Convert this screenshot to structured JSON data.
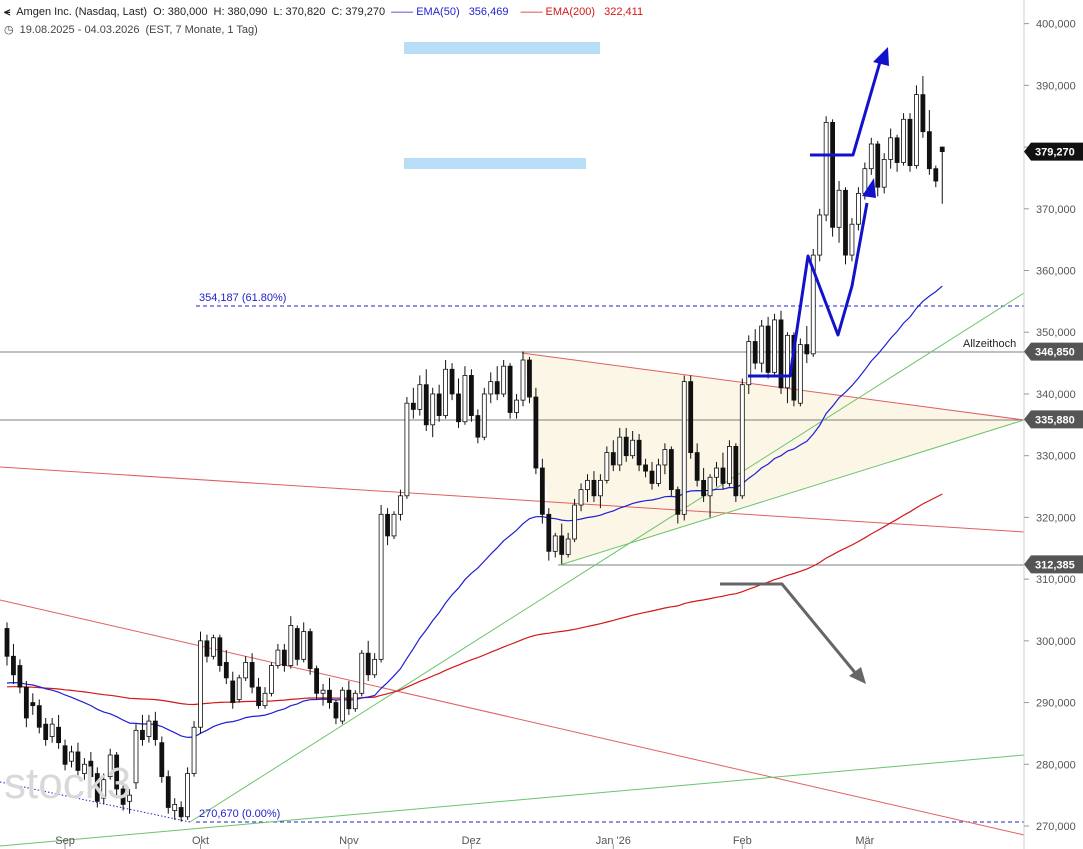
{
  "header": {
    "title": "Amgen Inc. (Nasdaq, Last)",
    "open": "O: 380,000",
    "high": "H: 380,090",
    "low": "L: 370,820",
    "close": "C: 379,270",
    "ema50_label": "EMA(50)",
    "ema50_value": "356,469",
    "ema200_label": "EMA(200)",
    "ema200_value": "322,411",
    "period": "19.08.2025 - 04.03.2026",
    "period_note": "(EST, 7 Monate, 1 Tag)"
  },
  "watermark": "stock3",
  "colors": {
    "ema50": "#1f1fd4",
    "ema200": "#d21818",
    "up": "#ffffff",
    "down": "#111111",
    "fib": "#2222cc",
    "zone": "#b7ddf7",
    "triangle": "#fbf6e6",
    "trend_green": "#6cc46c",
    "trend_red": "#e06060",
    "arrow_blue": "#1212cc",
    "arrow_gray": "#666666"
  },
  "annotations": {
    "allzeithoch": "Allzeithoch",
    "fib_high": "354,187 (61.80%)",
    "fib_low": "270,670 (0.00%)"
  },
  "chart_data": {
    "type": "candlestick",
    "title": "Amgen Inc. (Nasdaq, Last)",
    "ylim": [
      268,
      403
    ],
    "y_ticks": [
      "270,000",
      "280,000",
      "290,000",
      "300,000",
      "310,000",
      "320,000",
      "330,000",
      "340,000",
      "350,000",
      "360,000",
      "370,000",
      "380,000",
      "390,000",
      "400,000"
    ],
    "x_ticks": [
      {
        "label": "Sep",
        "index": 9
      },
      {
        "label": "Okt",
        "index": 30
      },
      {
        "label": "Nov",
        "index": 53
      },
      {
        "label": "Dez",
        "index": 72
      },
      {
        "label": "Jan '26",
        "index": 94
      },
      {
        "label": "Feb",
        "index": 114
      },
      {
        "label": "Mär",
        "index": 133
      }
    ],
    "price_levels": [
      {
        "label": "379,270",
        "value": 379.27,
        "type": "last"
      },
      {
        "label": "346,850",
        "value": 346.85,
        "type": "line"
      },
      {
        "label": "335,880",
        "value": 335.88,
        "type": "line"
      },
      {
        "label": "312,385",
        "value": 312.385,
        "type": "line"
      }
    ],
    "candles": [
      [
        302.0,
        303.0,
        296.0,
        297.5
      ],
      [
        297.5,
        299.5,
        293.0,
        294.5
      ],
      [
        296.0,
        297.0,
        291.5,
        292.5
      ],
      [
        292.5,
        293.5,
        286.0,
        287.5
      ],
      [
        290.0,
        291.5,
        288.0,
        289.5
      ],
      [
        289.5,
        290.5,
        285.0,
        286.0
      ],
      [
        286.5,
        287.5,
        283.0,
        284.0
      ],
      [
        284.5,
        287.5,
        283.5,
        286.5
      ],
      [
        286.0,
        288.0,
        282.5,
        283.5
      ],
      [
        283.0,
        284.0,
        279.0,
        280.0
      ],
      [
        280.5,
        283.0,
        279.5,
        282.0
      ],
      [
        282.0,
        283.5,
        278.0,
        279.0
      ],
      [
        278.5,
        281.0,
        277.5,
        280.0
      ],
      [
        280.5,
        282.0,
        277.0,
        278.0
      ],
      [
        278.5,
        279.5,
        273.0,
        274.0
      ],
      [
        274.5,
        278.5,
        273.5,
        277.5
      ],
      [
        278.0,
        282.5,
        277.5,
        281.5
      ],
      [
        281.5,
        282.0,
        274.5,
        276.0
      ],
      [
        276.0,
        277.0,
        272.5,
        273.5
      ],
      [
        274.0,
        276.0,
        272.0,
        275.0
      ],
      [
        277.0,
        286.5,
        276.0,
        285.5
      ],
      [
        285.5,
        288.0,
        283.0,
        284.0
      ],
      [
        284.5,
        288.0,
        283.5,
        287.0
      ],
      [
        287.0,
        288.5,
        283.0,
        284.0
      ],
      [
        283.5,
        284.5,
        277.0,
        278.0
      ],
      [
        278.0,
        279.0,
        272.0,
        273.0
      ],
      [
        272.5,
        274.5,
        271.0,
        273.5
      ],
      [
        273.0,
        274.0,
        270.7,
        271.5
      ],
      [
        271.5,
        279.5,
        271.0,
        278.5
      ],
      [
        278.5,
        287.0,
        278.0,
        286.0
      ],
      [
        286.0,
        301.5,
        285.0,
        300.0
      ],
      [
        300.0,
        301.0,
        296.5,
        297.5
      ],
      [
        297.5,
        301.0,
        297.0,
        300.5
      ],
      [
        300.5,
        301.0,
        295.0,
        296.0
      ],
      [
        296.5,
        298.5,
        293.0,
        294.0
      ],
      [
        293.5,
        295.0,
        289.0,
        290.0
      ],
      [
        290.5,
        294.5,
        290.0,
        294.0
      ],
      [
        294.0,
        297.5,
        293.5,
        296.5
      ],
      [
        296.5,
        298.0,
        291.5,
        292.5
      ],
      [
        292.5,
        294.0,
        289.0,
        289.5
      ],
      [
        289.5,
        292.5,
        289.0,
        291.5
      ],
      [
        291.5,
        296.5,
        291.0,
        296.0
      ],
      [
        296.0,
        299.5,
        295.5,
        298.5
      ],
      [
        298.5,
        299.5,
        295.0,
        296.0
      ],
      [
        296.0,
        304.0,
        295.5,
        302.5
      ],
      [
        302.0,
        302.5,
        296.0,
        297.0
      ],
      [
        297.0,
        303.0,
        296.5,
        301.5
      ],
      [
        301.5,
        302.0,
        294.5,
        295.5
      ],
      [
        295.5,
        296.0,
        290.5,
        291.5
      ],
      [
        291.5,
        293.0,
        289.5,
        292.0
      ],
      [
        292.0,
        294.0,
        289.0,
        290.0
      ],
      [
        290.0,
        290.5,
        286.5,
        287.5
      ],
      [
        287.0,
        292.5,
        286.5,
        292.0
      ],
      [
        292.0,
        293.5,
        288.0,
        289.0
      ],
      [
        289.0,
        292.0,
        288.5,
        291.5
      ],
      [
        291.5,
        298.5,
        291.0,
        298.0
      ],
      [
        298.0,
        300.0,
        293.5,
        294.5
      ],
      [
        294.5,
        298.0,
        294.0,
        297.0
      ],
      [
        297.0,
        322.0,
        296.5,
        320.5
      ],
      [
        320.5,
        321.5,
        315.5,
        317.0
      ],
      [
        317.0,
        321.0,
        316.5,
        320.5
      ],
      [
        320.5,
        324.5,
        319.5,
        323.5
      ],
      [
        323.5,
        339.5,
        323.0,
        338.5
      ],
      [
        338.5,
        341.0,
        336.0,
        337.5
      ],
      [
        337.5,
        343.0,
        336.5,
        341.5
      ],
      [
        341.5,
        344.0,
        334.0,
        335.0
      ],
      [
        335.0,
        341.0,
        333.0,
        340.0
      ],
      [
        340.0,
        341.5,
        335.5,
        336.5
      ],
      [
        336.5,
        345.5,
        336.0,
        344.0
      ],
      [
        344.0,
        345.0,
        339.0,
        340.0
      ],
      [
        340.0,
        342.5,
        334.5,
        335.5
      ],
      [
        335.5,
        344.5,
        335.0,
        343.0
      ],
      [
        343.0,
        344.0,
        335.5,
        336.5
      ],
      [
        336.5,
        337.5,
        332.0,
        333.0
      ],
      [
        333.0,
        341.0,
        332.5,
        340.0
      ],
      [
        340.0,
        343.5,
        338.5,
        342.0
      ],
      [
        342.0,
        344.5,
        339.0,
        340.0
      ],
      [
        340.0,
        345.5,
        339.5,
        344.5
      ],
      [
        344.5,
        345.0,
        336.0,
        337.0
      ],
      [
        337.0,
        340.0,
        336.0,
        339.0
      ],
      [
        339.0,
        346.9,
        338.0,
        345.5
      ],
      [
        345.5,
        346.0,
        338.5,
        339.5
      ],
      [
        339.5,
        341.0,
        327.0,
        328.0
      ],
      [
        328.0,
        329.5,
        319.0,
        320.5
      ],
      [
        320.5,
        321.5,
        313.0,
        314.5
      ],
      [
        314.5,
        317.5,
        313.5,
        317.0
      ],
      [
        317.0,
        319.0,
        312.4,
        314.0
      ],
      [
        314.0,
        317.5,
        313.5,
        316.5
      ],
      [
        316.5,
        323.0,
        316.0,
        322.0
      ],
      [
        322.0,
        325.5,
        321.0,
        324.5
      ],
      [
        324.5,
        327.0,
        322.5,
        326.0
      ],
      [
        326.0,
        327.5,
        322.5,
        323.5
      ],
      [
        323.5,
        327.0,
        321.5,
        326.0
      ],
      [
        326.0,
        331.5,
        325.5,
        330.5
      ],
      [
        330.5,
        332.5,
        327.5,
        328.5
      ],
      [
        328.5,
        334.5,
        327.5,
        333.0
      ],
      [
        333.0,
        334.5,
        329.0,
        330.0
      ],
      [
        330.0,
        334.0,
        329.5,
        332.5
      ],
      [
        332.5,
        333.5,
        327.5,
        328.5
      ],
      [
        328.5,
        329.5,
        326.5,
        327.5
      ],
      [
        327.5,
        329.0,
        324.5,
        325.5
      ],
      [
        325.5,
        329.5,
        325.0,
        328.5
      ],
      [
        328.5,
        332.0,
        327.0,
        331.0
      ],
      [
        331.0,
        331.5,
        323.5,
        324.5
      ],
      [
        324.5,
        325.0,
        319.0,
        320.5
      ],
      [
        320.5,
        343.0,
        319.5,
        342.0
      ],
      [
        342.0,
        343.0,
        329.5,
        330.5
      ],
      [
        330.5,
        332.0,
        325.0,
        326.0
      ],
      [
        326.0,
        328.0,
        322.5,
        323.5
      ],
      [
        323.5,
        327.0,
        320.0,
        326.5
      ],
      [
        326.5,
        329.0,
        325.0,
        328.0
      ],
      [
        328.0,
        330.5,
        324.5,
        325.5
      ],
      [
        325.5,
        332.5,
        325.0,
        331.5
      ],
      [
        331.5,
        332.0,
        322.5,
        323.5
      ],
      [
        323.5,
        342.5,
        323.0,
        341.5
      ],
      [
        341.5,
        349.5,
        340.0,
        348.5
      ],
      [
        348.5,
        350.5,
        344.0,
        345.0
      ],
      [
        345.0,
        352.0,
        343.5,
        351.0
      ],
      [
        351.0,
        352.5,
        342.5,
        343.5
      ],
      [
        343.5,
        353.0,
        343.0,
        352.0
      ],
      [
        352.0,
        353.5,
        340.0,
        341.0
      ],
      [
        341.0,
        350.0,
        338.5,
        349.5
      ],
      [
        349.5,
        350.0,
        338.0,
        339.0
      ],
      [
        338.5,
        349.0,
        338.0,
        348.0
      ],
      [
        348.0,
        351.0,
        345.0,
        346.5
      ],
      [
        346.5,
        363.5,
        346.0,
        362.5
      ],
      [
        362.5,
        370.0,
        361.5,
        369.0
      ],
      [
        369.0,
        385.0,
        368.0,
        384.0
      ],
      [
        384.0,
        384.5,
        365.5,
        367.0
      ],
      [
        367.0,
        374.5,
        364.5,
        373.0
      ],
      [
        373.0,
        373.5,
        361.0,
        362.5
      ],
      [
        362.5,
        368.5,
        361.5,
        367.5
      ],
      [
        367.5,
        373.5,
        366.5,
        372.5
      ],
      [
        372.5,
        377.5,
        371.5,
        376.5
      ],
      [
        376.5,
        381.5,
        375.5,
        380.5
      ],
      [
        380.5,
        381.0,
        372.0,
        373.5
      ],
      [
        373.5,
        379.0,
        372.5,
        378.0
      ],
      [
        378.0,
        383.0,
        376.5,
        381.5
      ],
      [
        381.5,
        382.0,
        376.0,
        377.5
      ],
      [
        377.5,
        385.5,
        377.0,
        384.5
      ],
      [
        384.5,
        385.5,
        376.0,
        377.0
      ],
      [
        377.0,
        390.0,
        376.5,
        388.5
      ],
      [
        388.5,
        391.5,
        381.5,
        382.5
      ],
      [
        382.5,
        386.0,
        375.5,
        376.5
      ],
      [
        376.5,
        377.0,
        373.5,
        374.5
      ],
      [
        380.0,
        380.09,
        370.82,
        379.27
      ]
    ]
  }
}
